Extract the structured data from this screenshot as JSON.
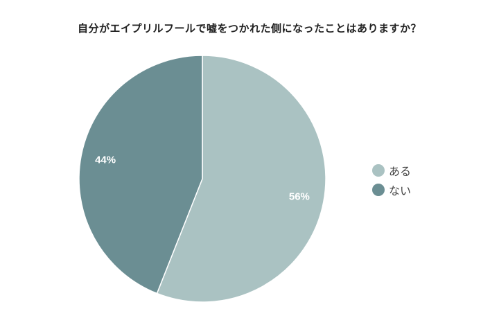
{
  "chart_data": {
    "type": "pie",
    "title": "自分がエイプリルフールで嘘をつかれた側になったことはありますか？",
    "slices": [
      {
        "label": "ある",
        "value": 56,
        "display": "56%",
        "color": "#aac2c2"
      },
      {
        "label": "ない",
        "value": 44,
        "display": "44%",
        "color": "#6b8e93"
      }
    ],
    "legend_position": "right"
  }
}
